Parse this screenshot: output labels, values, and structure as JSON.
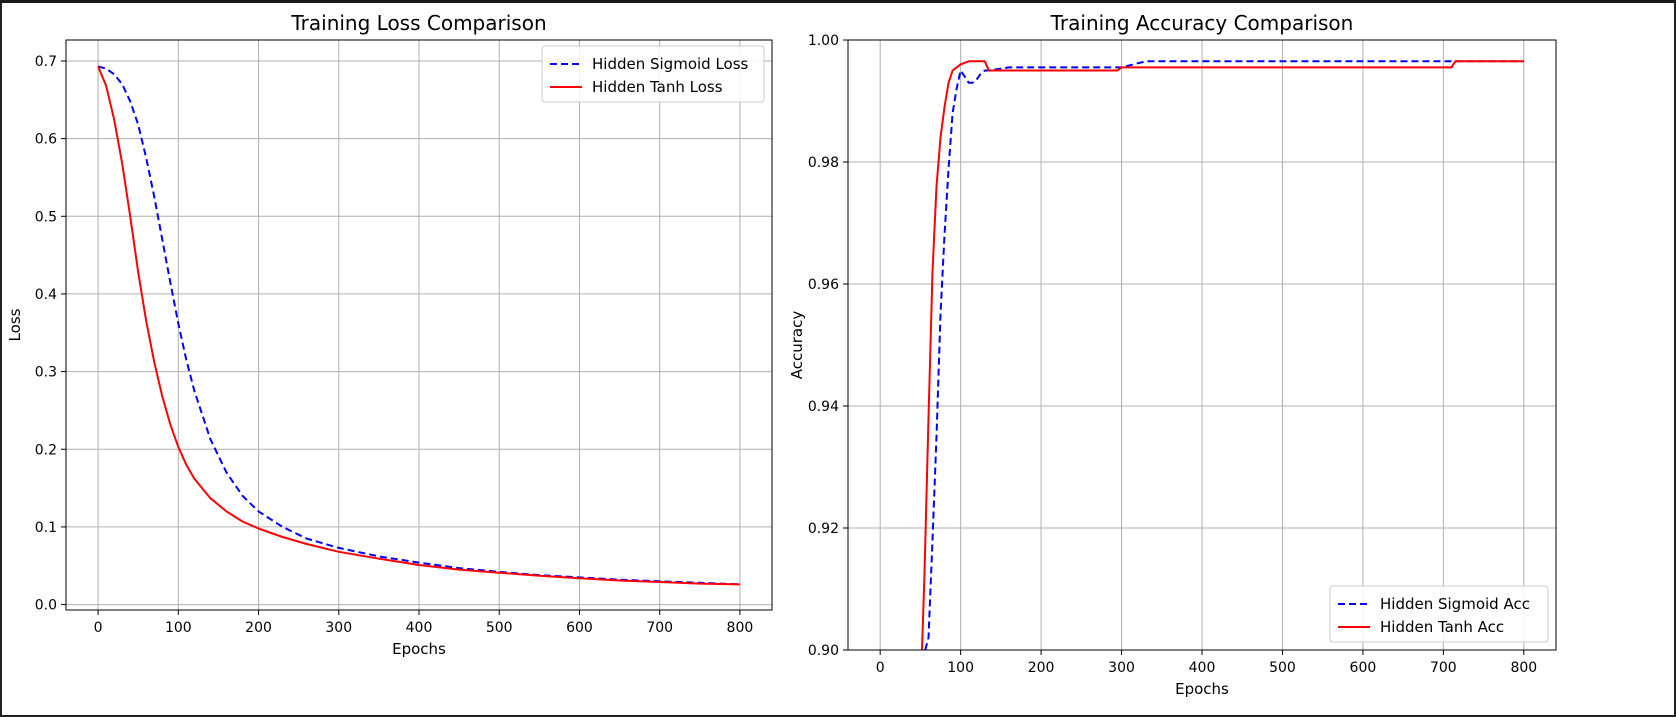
{
  "colors": {
    "sigmoid": "#0000ff",
    "tanh": "#ff0000",
    "grid": "#b0b0b0",
    "axis": "#000000"
  },
  "chart_data": [
    {
      "type": "line",
      "title": "Training Loss Comparison",
      "xlabel": "Epochs",
      "ylabel": "Loss",
      "xlim": [
        -40,
        840
      ],
      "ylim": [
        -0.007,
        0.727
      ],
      "xticks": [
        0,
        100,
        200,
        300,
        400,
        500,
        600,
        700,
        800
      ],
      "xtick_labels": [
        "0",
        "100",
        "200",
        "300",
        "400",
        "500",
        "600",
        "700",
        "800"
      ],
      "yticks": [
        0.0,
        0.1,
        0.2,
        0.3,
        0.4,
        0.5,
        0.6,
        0.7
      ],
      "ytick_labels": [
        "0.0",
        "0.1",
        "0.2",
        "0.3",
        "0.4",
        "0.5",
        "0.6",
        "0.7"
      ],
      "grid": true,
      "legend_position": "upper-right",
      "series": [
        {
          "name": "Hidden Sigmoid Loss",
          "style": "dashed",
          "color": "#0000ff",
          "x": [
            0,
            10,
            20,
            30,
            40,
            50,
            60,
            70,
            80,
            90,
            100,
            110,
            120,
            140,
            160,
            180,
            200,
            230,
            260,
            300,
            350,
            400,
            450,
            500,
            550,
            600,
            650,
            700,
            750,
            800
          ],
          "y": [
            0.693,
            0.69,
            0.683,
            0.67,
            0.648,
            0.618,
            0.575,
            0.525,
            0.47,
            0.415,
            0.362,
            0.315,
            0.275,
            0.213,
            0.17,
            0.14,
            0.12,
            0.1,
            0.085,
            0.073,
            0.062,
            0.054,
            0.047,
            0.042,
            0.038,
            0.035,
            0.032,
            0.03,
            0.028,
            0.026
          ]
        },
        {
          "name": "Hidden Tanh Loss",
          "style": "solid",
          "color": "#ff0000",
          "x": [
            0,
            10,
            20,
            30,
            40,
            50,
            60,
            70,
            80,
            90,
            100,
            110,
            120,
            140,
            160,
            180,
            200,
            230,
            260,
            300,
            350,
            400,
            450,
            500,
            550,
            600,
            650,
            700,
            750,
            800
          ],
          "y": [
            0.693,
            0.668,
            0.625,
            0.568,
            0.5,
            0.428,
            0.365,
            0.312,
            0.268,
            0.232,
            0.203,
            0.18,
            0.162,
            0.137,
            0.12,
            0.107,
            0.098,
            0.087,
            0.078,
            0.068,
            0.059,
            0.051,
            0.045,
            0.041,
            0.037,
            0.034,
            0.031,
            0.029,
            0.027,
            0.026
          ]
        }
      ]
    },
    {
      "type": "line",
      "title": "Training Accuracy Comparison",
      "xlabel": "Epochs",
      "ylabel": "Accuracy",
      "xlim": [
        -40,
        840
      ],
      "ylim": [
        0.9,
        1.0
      ],
      "xticks": [
        0,
        100,
        200,
        300,
        400,
        500,
        600,
        700,
        800
      ],
      "xtick_labels": [
        "0",
        "100",
        "200",
        "300",
        "400",
        "500",
        "600",
        "700",
        "800"
      ],
      "yticks": [
        0.9,
        0.92,
        0.94,
        0.96,
        0.98,
        1.0
      ],
      "ytick_labels": [
        "0.90",
        "0.92",
        "0.94",
        "0.96",
        "0.98",
        "1.00"
      ],
      "grid": true,
      "legend_position": "lower-right",
      "series": [
        {
          "name": "Hidden Sigmoid Acc",
          "style": "dashed",
          "color": "#0000ff",
          "x": [
            56,
            60,
            65,
            70,
            75,
            80,
            85,
            90,
            95,
            100,
            105,
            110,
            115,
            120,
            125,
            130,
            135,
            160,
            300,
            330,
            800
          ],
          "y": [
            0.9,
            0.902,
            0.918,
            0.935,
            0.955,
            0.968,
            0.979,
            0.988,
            0.992,
            0.995,
            0.994,
            0.993,
            0.993,
            0.9935,
            0.9945,
            0.995,
            0.995,
            0.9955,
            0.9955,
            0.9965,
            0.9965
          ]
        },
        {
          "name": "Hidden Tanh Acc",
          "style": "solid",
          "color": "#ff0000",
          "x": [
            52,
            55,
            60,
            65,
            70,
            75,
            80,
            85,
            90,
            95,
            100,
            110,
            120,
            130,
            135,
            140,
            295,
            300,
            710,
            715,
            800
          ],
          "y": [
            0.9,
            0.912,
            0.938,
            0.962,
            0.976,
            0.984,
            0.989,
            0.993,
            0.995,
            0.9955,
            0.996,
            0.9965,
            0.9965,
            0.9965,
            0.995,
            0.995,
            0.995,
            0.9955,
            0.9955,
            0.9965,
            0.9965
          ]
        }
      ]
    }
  ]
}
